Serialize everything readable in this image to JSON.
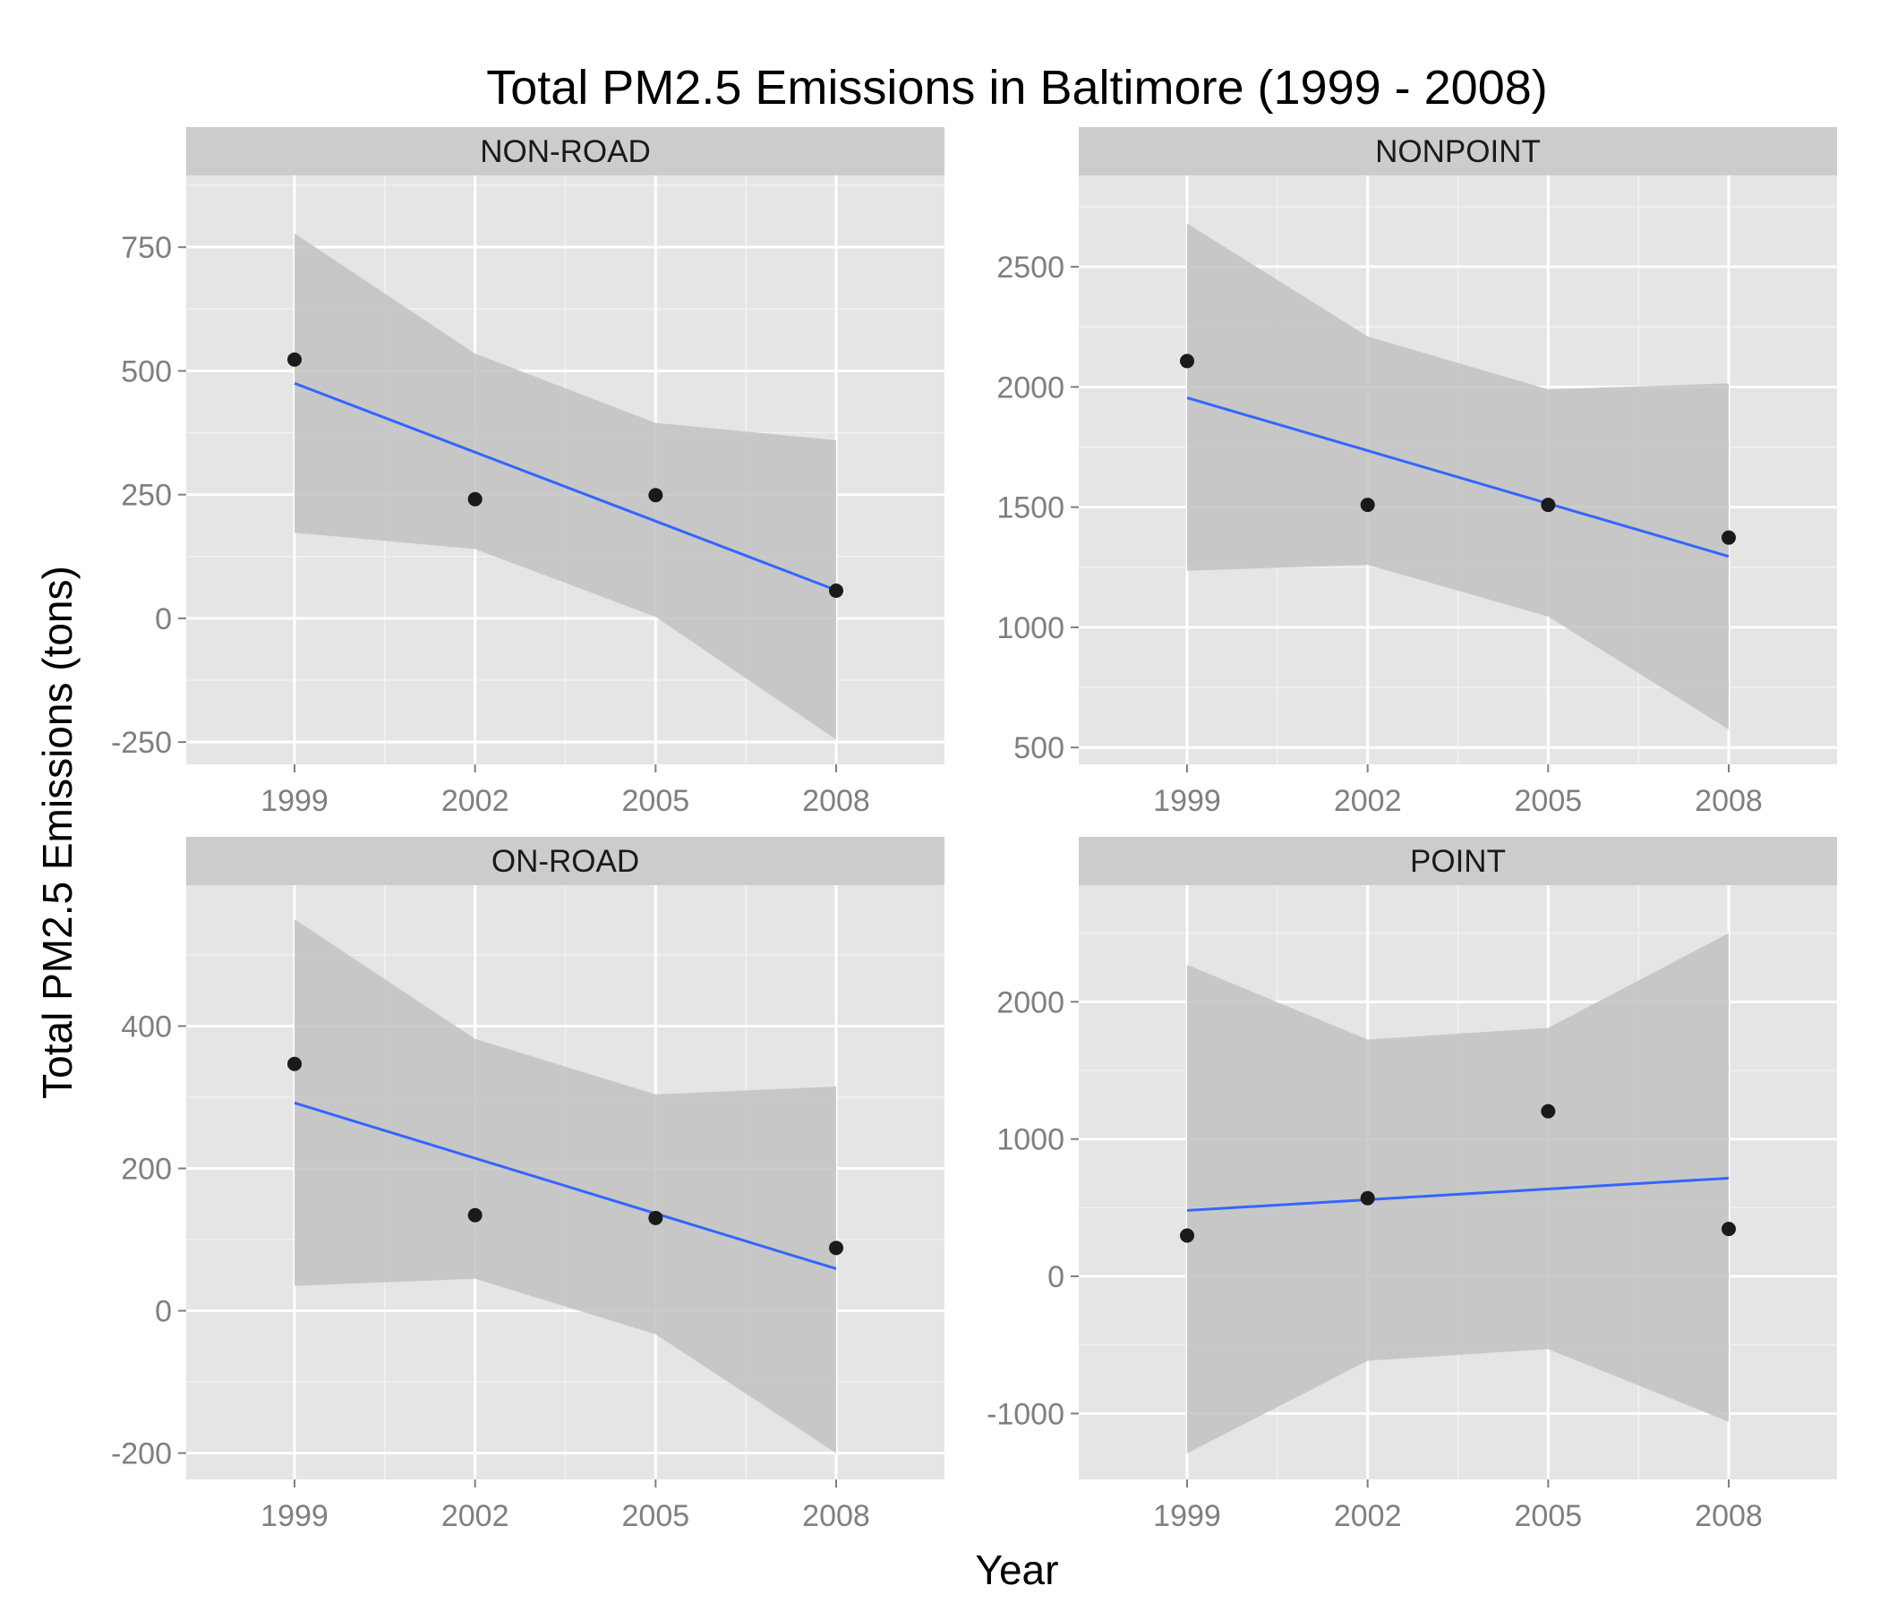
{
  "chart_data": {
    "type": "scatter",
    "title": "Total PM2.5 Emissions in Baltimore (1999 - 2008)",
    "xlabel": "Year",
    "ylabel": "Total PM2.5 Emissions (tons)",
    "x": [
      1999,
      2002,
      2005,
      2008
    ],
    "xlim": [
      1997.2,
      2009.8
    ],
    "grid": true,
    "colors": {
      "panel_bg": "#e5e5e5",
      "strip_bg": "#cccccc",
      "grid": "#ffffff",
      "ribbon": "#c2c2c2",
      "fit_line": "#3366ff",
      "point": "#1a1a1a"
    },
    "panels": [
      {
        "name": "NON-ROAD",
        "values": [
          522.94,
          240.85,
          248.93,
          55.82
        ],
        "fit": [
          475,
          57
        ],
        "ci_upper": [
          778,
          535,
          395,
          360
        ],
        "ci_lower": [
          173,
          140,
          3,
          -245
        ],
        "ylim": [
          -295,
          895
        ],
        "yticks": [
          -250,
          0,
          250,
          500,
          750
        ],
        "ytick_labels": [
          "-250",
          "0",
          "250",
          "500",
          "750"
        ]
      },
      {
        "name": "NONPOINT",
        "values": [
          2107.63,
          1509.5,
          1509.5,
          1373.21
        ],
        "fit": [
          1955,
          1295
        ],
        "ci_upper": [
          2680,
          2210,
          1990,
          2015
        ],
        "ci_lower": [
          1235,
          1260,
          1045,
          575
        ],
        "ylim": [
          430,
          2880
        ],
        "yticks": [
          500,
          1000,
          1500,
          2000,
          2500
        ],
        "ytick_labels": [
          "500",
          "1000",
          "1500",
          "2000",
          "2500"
        ]
      },
      {
        "name": "ON-ROAD",
        "values": [
          346.82,
          134.31,
          130.43,
          88.28
        ],
        "fit": [
          292,
          59
        ],
        "ci_upper": [
          550,
          382,
          304,
          315
        ],
        "ci_lower": [
          35,
          45,
          -33,
          -200
        ],
        "ylim": [
          -237,
          598
        ],
        "yticks": [
          -200,
          0,
          200,
          400
        ],
        "ytick_labels": [
          "-200",
          "0",
          "200",
          "400"
        ]
      },
      {
        "name": "POINT",
        "values": [
          296.8,
          569.26,
          1202.49,
          344.98
        ],
        "fit": [
          480,
          715
        ],
        "ci_upper": [
          2270,
          1725,
          1810,
          2500
        ],
        "ci_lower": [
          -1290,
          -615,
          -530,
          -1060
        ],
        "ylim": [
          -1480,
          2850
        ],
        "yticks": [
          -1000,
          0,
          1000,
          2000
        ],
        "ytick_labels": [
          "-1000",
          "0",
          "1000",
          "2000"
        ]
      }
    ]
  }
}
